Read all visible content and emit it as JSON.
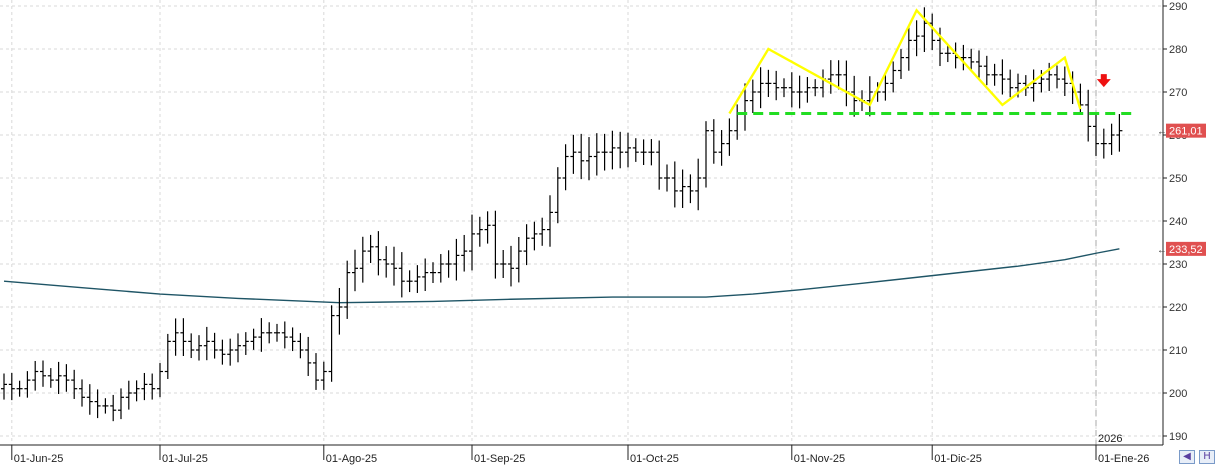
{
  "chart_data": {
    "type": "ohlc",
    "y_ticks": [
      190,
      200,
      210,
      220,
      230,
      240,
      250,
      260,
      270,
      280,
      290
    ],
    "ylim": [
      187,
      291
    ],
    "x_ticks": [
      {
        "label": "01-Jun-25",
        "i": 1
      },
      {
        "label": "01-Jul-25",
        "i": 20
      },
      {
        "label": "01-Ago-25",
        "i": 41
      },
      {
        "label": "01-Sep-25",
        "i": 60
      },
      {
        "label": "01-Oct-25",
        "i": 80
      },
      {
        "label": "01-Nov-25",
        "i": 101
      },
      {
        "label": "01-Dic-25",
        "i": 119
      },
      {
        "label": "01-Ene-26",
        "i": 140
      }
    ],
    "year_marker": {
      "label": "2026",
      "i": 140
    },
    "closes": [
      202,
      201,
      201,
      203,
      205,
      204,
      203,
      204,
      203,
      201,
      199,
      198,
      197,
      197,
      196,
      199,
      200,
      201,
      202,
      201,
      205,
      212,
      214,
      212,
      210,
      211,
      212,
      210,
      209,
      210,
      211,
      212,
      213,
      214,
      214,
      214,
      213,
      212,
      210,
      207,
      203,
      205,
      218,
      220,
      228,
      229,
      233,
      234,
      231,
      230,
      229,
      226,
      226,
      227,
      228,
      228,
      230,
      230,
      232,
      233,
      237,
      238,
      239,
      230,
      230,
      229,
      233,
      236,
      237,
      238,
      242,
      250,
      255,
      256,
      254,
      255,
      256,
      256,
      257,
      256,
      257,
      256,
      256,
      256,
      250,
      250,
      247,
      248,
      247,
      250,
      261,
      256,
      258,
      261,
      265,
      268,
      270,
      272,
      272,
      271,
      271,
      270,
      270,
      271,
      271,
      273,
      274,
      274,
      270,
      268,
      268,
      270,
      270,
      272,
      275,
      278,
      282,
      283,
      286,
      282,
      279,
      279,
      278,
      278,
      277,
      276,
      274,
      274,
      273,
      271,
      272,
      271,
      272,
      273,
      274,
      273,
      272,
      270,
      267,
      262,
      258,
      258,
      260,
      261
    ],
    "ranges": [
      {
        "from": 0,
        "to": 18,
        "spread": 6
      },
      {
        "from": 19,
        "to": 41,
        "spread": 6
      },
      {
        "from": 42,
        "to": 90,
        "spread": 8
      },
      {
        "from": 91,
        "to": 143,
        "spread": 7
      }
    ],
    "moving_average": [
      {
        "i": 0,
        "v": 226
      },
      {
        "i": 10,
        "v": 224.5
      },
      {
        "i": 20,
        "v": 223
      },
      {
        "i": 30,
        "v": 222
      },
      {
        "i": 43,
        "v": 221
      },
      {
        "i": 55,
        "v": 221.3
      },
      {
        "i": 65,
        "v": 221.8
      },
      {
        "i": 78,
        "v": 222.3
      },
      {
        "i": 90,
        "v": 222.3
      },
      {
        "i": 96,
        "v": 223
      },
      {
        "i": 102,
        "v": 224
      },
      {
        "i": 110,
        "v": 225.5
      },
      {
        "i": 120,
        "v": 227.5
      },
      {
        "i": 130,
        "v": 229.5
      },
      {
        "i": 136,
        "v": 231
      },
      {
        "i": 140,
        "v": 232.5
      },
      {
        "i": 143,
        "v": 233.52
      }
    ],
    "pattern_line": [
      {
        "i": 93,
        "v": 265
      },
      {
        "i": 98,
        "v": 280
      },
      {
        "i": 111,
        "v": 267
      },
      {
        "i": 117,
        "v": 289
      },
      {
        "i": 128,
        "v": 267
      },
      {
        "i": 136,
        "v": 278
      },
      {
        "i": 138,
        "v": 266
      }
    ],
    "neckline": {
      "from_i": 94,
      "to_i": 145,
      "v": 265
    },
    "arrow": {
      "i": 141,
      "v": 273
    },
    "last_price": {
      "value": "261,01",
      "v": 261.01
    },
    "ma_price": {
      "value": "233,52",
      "v": 233.52
    },
    "colors": {
      "bars": "#000000",
      "moving_average": "#1f5566",
      "pattern": "#ffff00",
      "neckline": "#22dd22",
      "arrow": "#ee1111",
      "badge": "#e05050",
      "grid": "#d8d8d8"
    }
  }
}
